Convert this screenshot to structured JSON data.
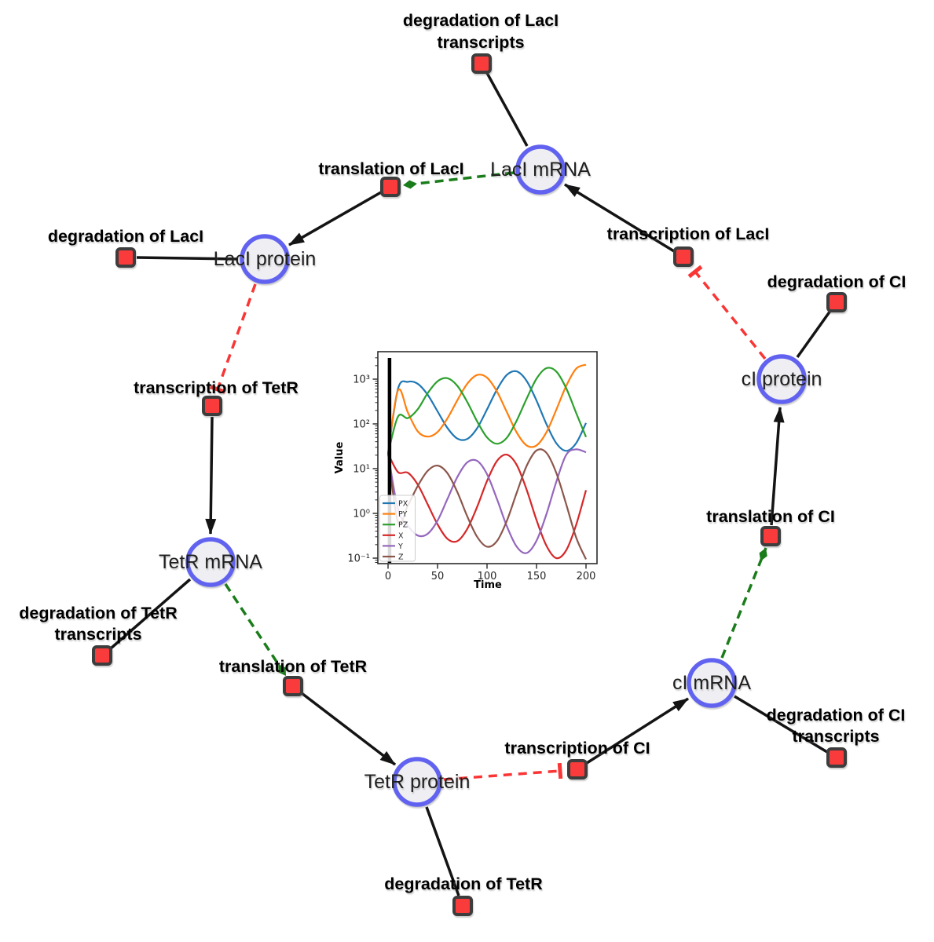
{
  "diagram": {
    "species": [
      {
        "id": "laci-mrna",
        "label": "LacI mRNA"
      },
      {
        "id": "laci-protein",
        "label": "LacI protein"
      },
      {
        "id": "tetr-mrna",
        "label": "TetR mRNA"
      },
      {
        "id": "tetr-protein",
        "label": "TetR protein"
      },
      {
        "id": "ci-mrna",
        "label": "cI mRNA"
      },
      {
        "id": "ci-protein",
        "label": "cI protein"
      }
    ],
    "reactions": [
      {
        "id": "degradation-laci-transcripts",
        "lines": [
          "degradation of LacI",
          "transcripts"
        ]
      },
      {
        "id": "translation-laci",
        "lines": [
          "translation of LacI"
        ]
      },
      {
        "id": "transcription-laci",
        "lines": [
          "transcription of LacI"
        ]
      },
      {
        "id": "degradation-laci",
        "lines": [
          "degradation of LacI"
        ]
      },
      {
        "id": "transcription-tetr",
        "lines": [
          "transcription of TetR"
        ]
      },
      {
        "id": "degradation-tetr-transcripts",
        "lines": [
          "degradation of TetR",
          "transcripts"
        ]
      },
      {
        "id": "translation-tetr",
        "lines": [
          "translation of TetR"
        ]
      },
      {
        "id": "degradation-tetr",
        "lines": [
          "degradation of TetR"
        ]
      },
      {
        "id": "transcription-ci",
        "lines": [
          "transcription of CI"
        ]
      },
      {
        "id": "degradation-ci-transcripts",
        "lines": [
          "degradation of CI",
          "transcripts"
        ]
      },
      {
        "id": "translation-ci",
        "lines": [
          "translation of CI"
        ]
      },
      {
        "id": "degradation-ci",
        "lines": [
          "degradation of CI"
        ]
      }
    ],
    "colors": {
      "species_fill": "#efeff3",
      "species_border": "#6163f0",
      "reaction_fill": "#f93b3b",
      "reaction_border": "#3d3d3d",
      "product_edge": "#141414",
      "modifier_edge": "#1a7c1a",
      "inhibition_edge": "#f93535"
    }
  },
  "chart_data": {
    "type": "line",
    "title": "",
    "xlabel": "Time",
    "ylabel": "Value",
    "x_axis_scale": "linear",
    "y_axis_scale": "log",
    "xlim": [
      0,
      200
    ],
    "ylim": [
      0.1,
      1000
    ],
    "x_ticks": [
      0,
      50,
      100,
      150,
      200
    ],
    "y_ticks": [
      0.1,
      1,
      10,
      100,
      1000
    ],
    "y_tick_labels": [
      "10⁻¹",
      "10⁰",
      "10¹",
      "10²",
      "10³"
    ],
    "legend_position": "lower left",
    "grid": false,
    "vline_x": 1.5,
    "x": [
      0,
      10,
      20,
      30,
      40,
      50,
      60,
      70,
      80,
      90,
      100,
      110,
      120,
      130,
      140,
      150,
      160,
      170,
      180,
      190,
      200
    ],
    "series": [
      {
        "name": "PX",
        "color": "#1f77b4",
        "values": [
          22,
          604,
          871,
          789,
          449,
          191,
          81,
          47,
          46,
          80,
          211,
          585,
          1242,
          1489,
          914,
          332,
          99,
          37,
          25,
          37,
          105
        ]
      },
      {
        "name": "PY",
        "color": "#ff7f0e",
        "values": [
          22,
          560,
          180,
          68,
          52,
          66,
          133,
          337,
          789,
          1238,
          1081,
          531,
          184,
          64,
          33,
          33,
          65,
          208,
          707,
          1714,
          2109
        ]
      },
      {
        "name": "PZ",
        "color": "#2ca02c",
        "values": [
          22,
          145,
          135,
          213,
          485,
          898,
          1050,
          710,
          310,
          114,
          50,
          36,
          49,
          119,
          365,
          1023,
          1762,
          1479,
          627,
          177,
          51
        ]
      },
      {
        "name": "X",
        "color": "#d62728",
        "values": [
          22,
          8.4,
          8.1,
          4.4,
          1.6,
          0.57,
          0.27,
          0.24,
          0.45,
          1.4,
          5.3,
          14.8,
          20.5,
          12.1,
          3.4,
          0.71,
          0.19,
          0.1,
          0.15,
          0.55,
          3.3
        ]
      },
      {
        "name": "Y",
        "color": "#9467bd",
        "values": [
          22,
          1.25,
          0.53,
          0.32,
          0.35,
          0.69,
          2.1,
          6.5,
          13.8,
          14.9,
          7.5,
          2.1,
          0.52,
          0.18,
          0.13,
          0.245,
          0.96,
          5.1,
          20.4,
          27,
          23.2
        ]
      },
      {
        "name": "Z",
        "color": "#8c564b",
        "values": [
          22,
          0.64,
          1.5,
          4.1,
          8.9,
          11.7,
          7.9,
          3.0,
          0.86,
          0.3,
          0.18,
          0.24,
          0.68,
          2.9,
          11.5,
          25.5,
          22.6,
          8.0,
          1.6,
          0.29,
          0.094
        ]
      }
    ]
  }
}
